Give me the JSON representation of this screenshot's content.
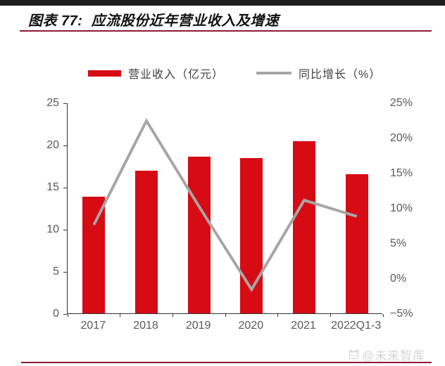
{
  "page": {
    "title": "图表 77:  应流股份近年营业收入及增速",
    "watermark": "@未来智库"
  },
  "colors": {
    "bar_red": "#d60b14",
    "line_gray": "#a6a6a6",
    "maroon_rule": "#8e1b34",
    "top_bar": "#1c1c1c",
    "axis_text": "#595959",
    "watermark_gray": "#d4d4d4"
  },
  "legend": {
    "revenue_label": "营业收入（亿元）",
    "growth_label": "同比增长（%）"
  },
  "chart_data": {
    "type": "bar+line",
    "categories": [
      "2017",
      "2018",
      "2019",
      "2020",
      "2021",
      "2022Q1-3"
    ],
    "series": [
      {
        "name": "营业收入（亿元）",
        "type": "bar",
        "axis": "left",
        "color": "#d60b14",
        "values": [
          13.8,
          16.9,
          18.6,
          18.4,
          20.4,
          16.5
        ]
      },
      {
        "name": "同比增长（%）",
        "type": "line",
        "axis": "right",
        "color": "#a6a6a6",
        "values": [
          7.7,
          22.5,
          10.3,
          -1.5,
          11.2,
          8.9
        ]
      }
    ],
    "left_axis": {
      "min": 0,
      "max": 25,
      "ticks": [
        {
          "v": 0,
          "label": "0"
        },
        {
          "v": 5,
          "label": "5"
        },
        {
          "v": 10,
          "label": "10"
        },
        {
          "v": 15,
          "label": "15"
        },
        {
          "v": 20,
          "label": "20"
        },
        {
          "v": 25,
          "label": "25"
        }
      ]
    },
    "right_axis": {
      "min": -5,
      "max": 25,
      "ticks": [
        {
          "v": -5,
          "label": "−5%"
        },
        {
          "v": 0,
          "label": "0%"
        },
        {
          "v": 5,
          "label": "5%"
        },
        {
          "v": 10,
          "label": "10%"
        },
        {
          "v": 15,
          "label": "15%"
        },
        {
          "v": 20,
          "label": "20%"
        },
        {
          "v": 25,
          "label": "25%"
        }
      ]
    },
    "grid": false,
    "legend_position": "top-center"
  }
}
